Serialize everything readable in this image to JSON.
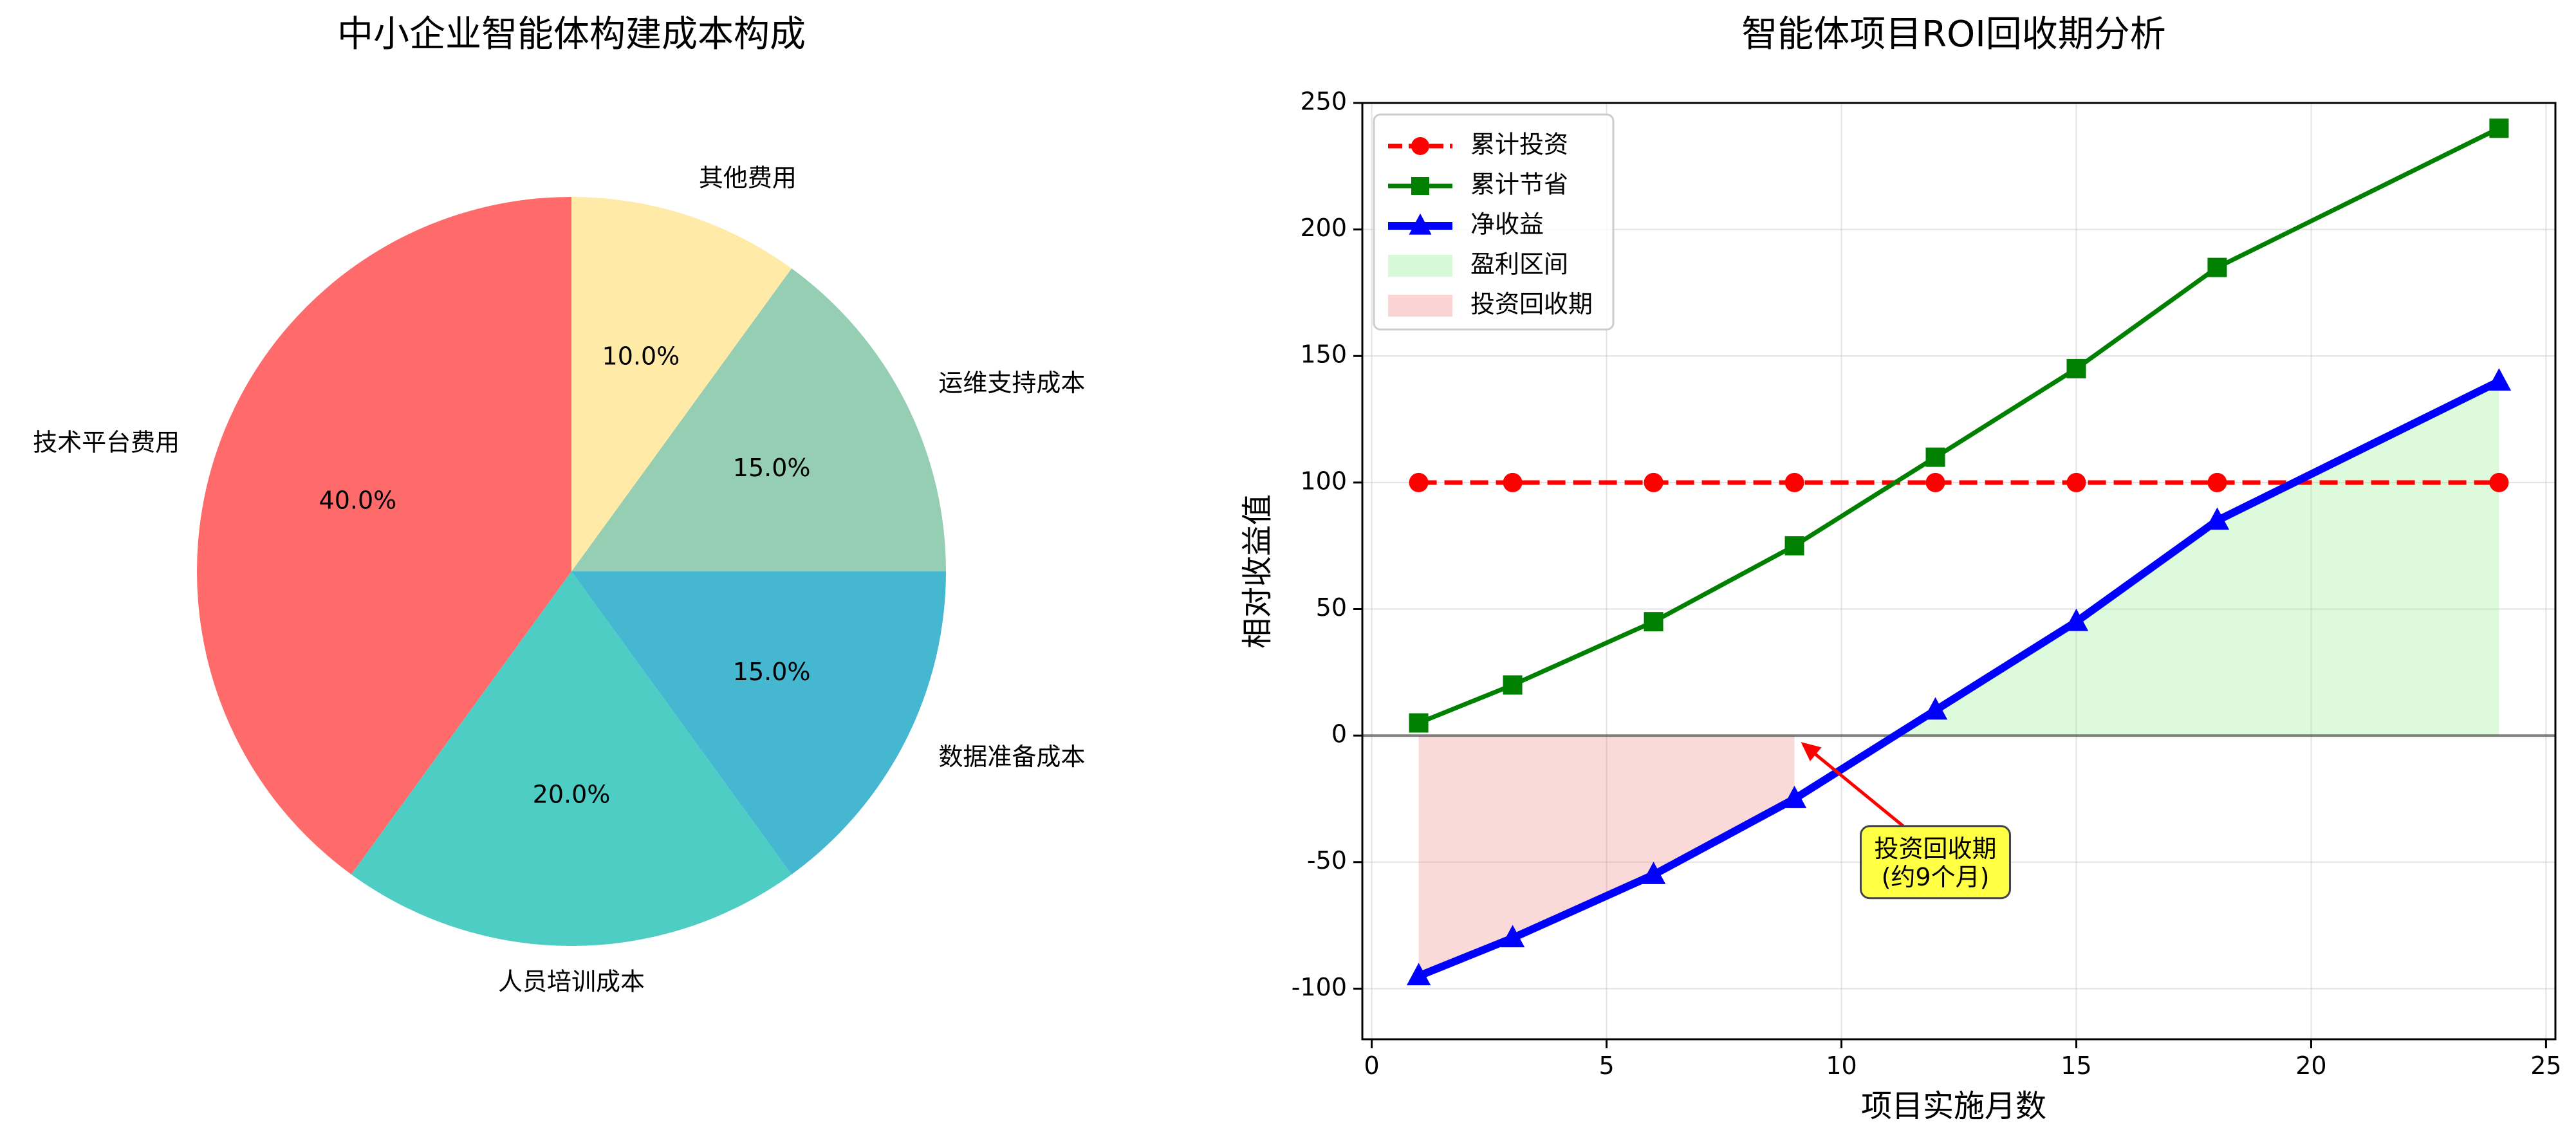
{
  "chart_data": [
    {
      "type": "pie",
      "title": "中小企业智能体构建成本构成",
      "slices": [
        {
          "label": "技术平台费用",
          "value": 40.0,
          "pct_label": "40.0%",
          "color": "#ff6b6b"
        },
        {
          "label": "人员培训成本",
          "value": 20.0,
          "pct_label": "20.0%",
          "color": "#4ecdc4"
        },
        {
          "label": "数据准备成本",
          "value": 15.0,
          "pct_label": "15.0%",
          "color": "#45b7d1"
        },
        {
          "label": "运维支持成本",
          "value": 15.0,
          "pct_label": "15.0%",
          "color": "#96ceb4"
        },
        {
          "label": "其他费用",
          "value": 10.0,
          "pct_label": "10.0%",
          "color": "#ffeaa7"
        }
      ]
    },
    {
      "type": "line",
      "title": "智能体项目ROI回收期分析",
      "xlabel": "项目实施月数",
      "ylabel": "相对收益值",
      "xlim": [
        -0.2,
        25.2
      ],
      "ylim": [
        -120,
        250
      ],
      "xticks": [
        0,
        5,
        10,
        15,
        20,
        25
      ],
      "yticks": [
        -100,
        -50,
        0,
        50,
        100,
        150,
        200,
        250
      ],
      "grid": true,
      "legend_position": "top-left",
      "x": [
        1,
        3,
        6,
        9,
        12,
        15,
        18,
        24
      ],
      "series": [
        {
          "name": "累计投资",
          "values": [
            100,
            100,
            100,
            100,
            100,
            100,
            100,
            100
          ],
          "color": "#ff0000",
          "style": "dashed",
          "marker": "circle"
        },
        {
          "name": "累计节省",
          "values": [
            5,
            20,
            45,
            75,
            110,
            145,
            185,
            240
          ],
          "color": "#008000",
          "style": "solid",
          "marker": "square"
        },
        {
          "name": "净收益",
          "values": [
            -95,
            -80,
            -55,
            -25,
            10,
            45,
            85,
            140
          ],
          "color": "#0000ff",
          "style": "solid",
          "marker": "triangle"
        }
      ],
      "areas": [
        {
          "name": "盈利区间",
          "color": "#90ee90"
        },
        {
          "name": "投资回收期",
          "color": "#f08080",
          "x_range": [
            1,
            9
          ]
        }
      ],
      "annotation": {
        "text_lines": [
          "投资回收期",
          "(约9个月)"
        ],
        "point": [
          9,
          0
        ],
        "text_at": [
          12,
          -50
        ],
        "box_color": "#ffff44"
      }
    }
  ]
}
